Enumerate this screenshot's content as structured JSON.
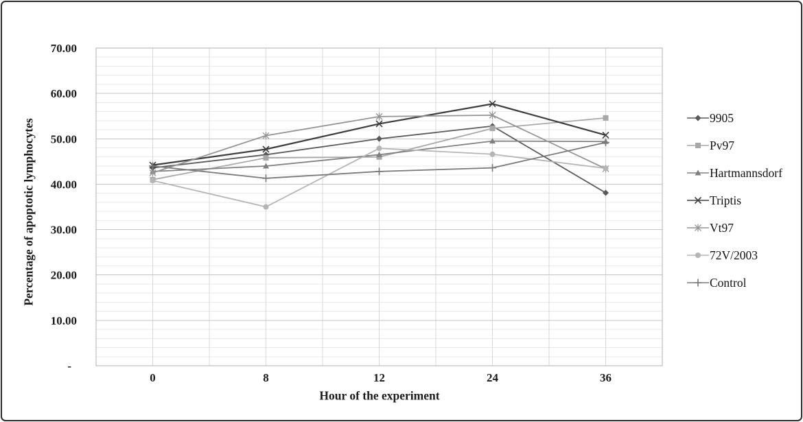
{
  "figure": {
    "background": "#ffffff",
    "border_color": "#2a2a2a",
    "text_color": "#1a1a1a"
  },
  "chart_data": {
    "type": "line",
    "title": "",
    "xlabel": "Hour of the experiment",
    "ylabel": "Percentage of apoptotic lymphocytes",
    "categories": [
      "0",
      "8",
      "12",
      "24",
      "36"
    ],
    "x_values_hours": [
      0,
      8,
      12,
      24,
      36
    ],
    "ylim": [
      0,
      70
    ],
    "y_axis": {
      "major_step": 10,
      "minor_step": 2,
      "tick_values": [
        70,
        60,
        50,
        40,
        30,
        20,
        10,
        0
      ],
      "tick_labels": [
        "70.00",
        "60.00",
        "50.00",
        "40.00",
        "30.00",
        "20.00",
        "10.00",
        "-"
      ]
    },
    "grid": {
      "minor_horizontal_color": "#eaeaea",
      "major_horizontal_color": "#c4c4c4",
      "vertical_color": "#d8d8d8",
      "border_color": "#b0b0b0",
      "grid_on": true
    },
    "legend_position": "right",
    "series": [
      {
        "name": "9905",
        "marker": "diamond",
        "color": "#5a5a5a",
        "stroke_width": 1.8,
        "values": [
          43.6,
          46.5,
          50.0,
          52.8,
          38.1
        ]
      },
      {
        "name": "Pv97",
        "marker": "square",
        "color": "#a8a8a8",
        "stroke_width": 1.8,
        "values": [
          41.0,
          45.8,
          46.0,
          52.3,
          54.6
        ]
      },
      {
        "name": "Hartmannsdorf",
        "marker": "triangle",
        "color": "#808080",
        "stroke_width": 1.8,
        "values": [
          42.8,
          44.0,
          46.5,
          49.5,
          49.4
        ]
      },
      {
        "name": "Triptis",
        "marker": "x",
        "color": "#3d3d3d",
        "stroke_width": 2.2,
        "values": [
          44.2,
          47.7,
          53.3,
          57.7,
          50.8
        ]
      },
      {
        "name": "Vt97",
        "marker": "star",
        "color": "#949494",
        "stroke_width": 1.8,
        "values": [
          42.5,
          50.7,
          54.9,
          55.2,
          43.4
        ]
      },
      {
        "name": "72V/2003",
        "marker": "circle",
        "color": "#b5b5b5",
        "stroke_width": 1.8,
        "values": [
          40.8,
          35.0,
          47.9,
          46.6,
          43.5
        ]
      },
      {
        "name": "Control",
        "marker": "plus",
        "color": "#787878",
        "stroke_width": 1.8,
        "values": [
          44.0,
          41.3,
          42.8,
          43.6,
          49.2
        ]
      }
    ]
  }
}
